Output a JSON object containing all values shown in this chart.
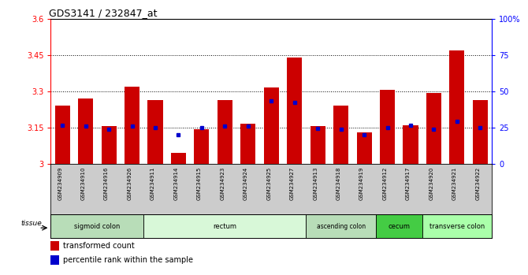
{
  "title": "GDS3141 / 232847_at",
  "samples": [
    "GSM234909",
    "GSM234910",
    "GSM234916",
    "GSM234926",
    "GSM234911",
    "GSM234914",
    "GSM234915",
    "GSM234923",
    "GSM234924",
    "GSM234925",
    "GSM234927",
    "GSM234913",
    "GSM234918",
    "GSM234919",
    "GSM234912",
    "GSM234917",
    "GSM234920",
    "GSM234921",
    "GSM234922"
  ],
  "bar_heights": [
    3.24,
    3.27,
    3.155,
    3.32,
    3.265,
    3.045,
    3.145,
    3.265,
    3.165,
    3.315,
    3.44,
    3.155,
    3.24,
    3.13,
    3.305,
    3.16,
    3.295,
    3.47,
    3.265
  ],
  "blue_dot_heights": [
    3.16,
    3.155,
    3.145,
    3.155,
    3.15,
    3.12,
    3.15,
    3.155,
    3.155,
    3.26,
    3.255,
    3.148,
    3.143,
    3.12,
    3.15,
    3.16,
    3.145,
    3.175,
    3.15
  ],
  "ylim_left": [
    3.0,
    3.6
  ],
  "yticks_left": [
    3.0,
    3.15,
    3.3,
    3.45,
    3.6
  ],
  "ytick_labels_left": [
    "3",
    "3.15",
    "3.3",
    "3.45",
    "3.6"
  ],
  "ylim_right": [
    0,
    100
  ],
  "yticks_right": [
    0,
    25,
    50,
    75,
    100
  ],
  "ytick_labels_right": [
    "0",
    "25",
    "50",
    "75",
    "100%"
  ],
  "bar_color": "#cc0000",
  "dot_color": "#0000cc",
  "tissue_groups": [
    {
      "label": "sigmoid colon",
      "start": 0,
      "end": 4,
      "color": "#b8ddb8"
    },
    {
      "label": "rectum",
      "start": 4,
      "end": 11,
      "color": "#d8f8d8"
    },
    {
      "label": "ascending colon",
      "start": 11,
      "end": 14,
      "color": "#b8ddb8"
    },
    {
      "label": "cecum",
      "start": 14,
      "end": 16,
      "color": "#44cc44"
    },
    {
      "label": "transverse colon",
      "start": 16,
      "end": 19,
      "color": "#aaffaa"
    }
  ],
  "legend_items": [
    {
      "label": "transformed count",
      "color": "#cc0000"
    },
    {
      "label": "percentile rank within the sample",
      "color": "#0000cc"
    }
  ]
}
